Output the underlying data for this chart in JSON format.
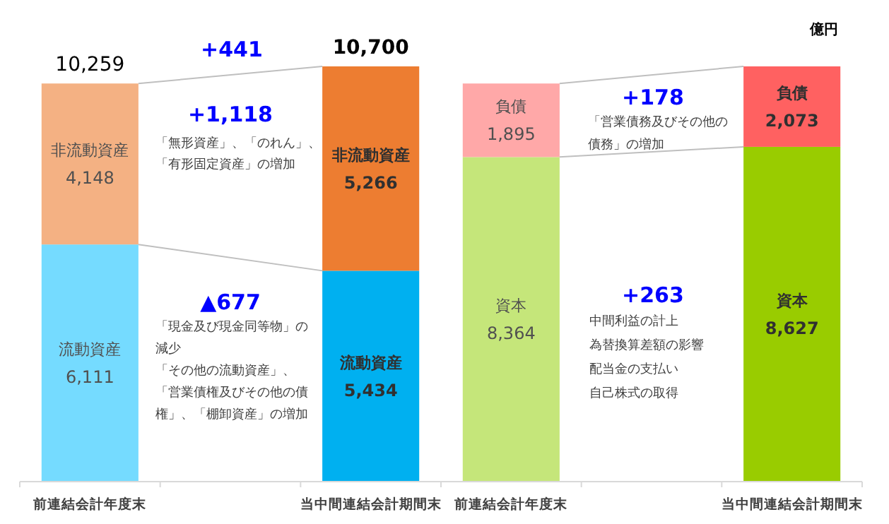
{
  "chart_data": [
    {
      "type": "bar",
      "stacked": true,
      "categories": [
        "前連結会計年度末",
        null,
        "当中間連結会計期間末"
      ],
      "tick_labels": "x",
      "totals": [
        "10,259",
        null,
        "10,700"
      ],
      "series": [
        {
          "name": "流動資産",
          "colors": [
            "#75dbff",
            null,
            "#00b0f0"
          ],
          "values": [
            6111,
            null,
            5434
          ],
          "value_labels": [
            "6,111",
            null,
            "5,434"
          ]
        },
        {
          "name": "非流動資産",
          "colors": [
            "#f4b183",
            null,
            "#ed7d31"
          ],
          "values": [
            4148,
            null,
            5266
          ],
          "value_labels": [
            "4,148",
            null,
            "5,266"
          ]
        }
      ],
      "annotations": [
        "+441",
        "+1,118",
        "「無形資産」、「のれん」、「有形固定資産」の増加",
        "▲677",
        "「現金及び現金同等物」の減少",
        "「その他の流動資産」、「営業債権及びその他の債権」、「棚卸資産」の増加"
      ]
    },
    {
      "type": "bar",
      "stacked": true,
      "categories": [
        "前連結会計年度末",
        null,
        "当中間連結会計期間末"
      ],
      "tick_labels": "x",
      "series": [
        {
          "name": "資本",
          "colors": [
            "#c5e67a",
            null,
            "#99cc00"
          ],
          "values": [
            8364,
            null,
            8627
          ],
          "value_labels": [
            "8,364",
            null,
            "8,627"
          ]
        },
        {
          "name": "負債",
          "colors": [
            "#ffa8a8",
            null,
            "#ff6161"
          ],
          "values": [
            1895,
            null,
            2073
          ],
          "value_labels": [
            "1,895",
            null,
            "2,073"
          ]
        }
      ],
      "annotations": [
        "億円",
        "+178",
        "「営業債務及びその他の債務」の増加",
        "+263",
        "中間利益の計上",
        "為替換算差額の影響",
        "配当金の支払い",
        "自己株式の取得"
      ]
    }
  ]
}
